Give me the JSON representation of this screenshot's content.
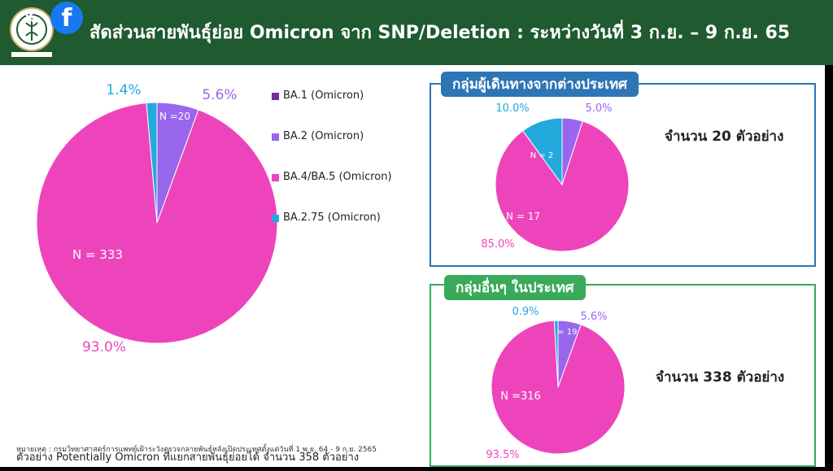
{
  "header": {
    "title": "สัดส่วนสายพันธุ์ย่อย Omicron จาก SNP/Deletion : ระหว่างวันที่ 3 ก.ย. – 9 ก.ย. 65",
    "close_glyph": "✕",
    "facebook_glyph": "f",
    "logo_icon": "department-seal-icon"
  },
  "colors": {
    "BA1": "#7030a0",
    "BA2": "#9966ee",
    "BA45": "#ee44bb",
    "BA275": "#22aadd",
    "header_bg": "#1f5a30",
    "box_blue": "#2e75b6",
    "box_green": "#3aaa5a"
  },
  "legend": [
    {
      "label": "BA.1 (Omicron)",
      "color": "#7030a0"
    },
    {
      "label": "BA.2 (Omicron)",
      "color": "#9966ee"
    },
    {
      "label": "BA.4/BA.5 (Omicron)",
      "color": "#ee44bb"
    },
    {
      "label": "BA.2.75 (Omicron)",
      "color": "#22aadd"
    }
  ],
  "chart_data": [
    {
      "type": "pie",
      "title": "",
      "slices": [
        {
          "name": "BA.2 (Omicron)",
          "value": 5.6,
          "pct_label": "5.6%",
          "n_label": "N =20",
          "color": "#9966ee"
        },
        {
          "name": "BA.4/BA.5 (Omicron)",
          "value": 93.0,
          "pct_label": "93.0%",
          "n_label": "N = 333",
          "color": "#ee44bb"
        },
        {
          "name": "BA.2.75 (Omicron)",
          "value": 1.4,
          "pct_label": "1.4%",
          "n_label": "",
          "color": "#22aadd"
        }
      ]
    },
    {
      "type": "pie",
      "title": "กลุ่มผู้เดินทางจากต่างประเทศ",
      "slices": [
        {
          "name": "BA.2 (Omicron)",
          "value": 5.0,
          "pct_label": "5.0%",
          "n_label": "",
          "color": "#9966ee"
        },
        {
          "name": "BA.4/BA.5 (Omicron)",
          "value": 85.0,
          "pct_label": "85.0%",
          "n_label": "N = 17",
          "color": "#ee44bb"
        },
        {
          "name": "BA.2.75 (Omicron)",
          "value": 10.0,
          "pct_label": "10.0%",
          "n_label": "N = 2",
          "color": "#22aadd"
        }
      ]
    },
    {
      "type": "pie",
      "title": "กลุ่มอื่นๆ ในประเทศ",
      "slices": [
        {
          "name": "BA.2 (Omicron)",
          "value": 5.6,
          "pct_label": "5.6%",
          "n_label": "N = 19",
          "color": "#9966ee"
        },
        {
          "name": "BA.4/BA.5 (Omicron)",
          "value": 93.5,
          "pct_label": "93.5%",
          "n_label": "N =316",
          "color": "#ee44bb"
        },
        {
          "name": "BA.2.75 (Omicron)",
          "value": 0.9,
          "pct_label": "0.9%",
          "n_label": "",
          "color": "#22aadd"
        }
      ]
    }
  ],
  "panels": {
    "travelers": {
      "title": "กลุ่มผู้เดินทางจากต่างประเทศ",
      "count": "จำนวน 20 ตัวอย่าง"
    },
    "domestic": {
      "title": "กลุ่มอื่นๆ ในประเทศ",
      "count": "จำนวน 338 ตัวอย่าง"
    }
  },
  "notes": {
    "sample": "ตัวอย่าง Potentially Omicron ที่แยกสายพันธุ์ย่อยได้ จำนวน 358 ตัวอย่าง",
    "footnote": "หมายเหตุ : กรมวิทยาศาสตร์การแพทย์เฝ้าระวังตรวจกลายพันธุ์หลังเปิดประเทศตั้งแต่วันที่ 1 พ.ย. 64 - 9 ก.ย. 2565"
  }
}
